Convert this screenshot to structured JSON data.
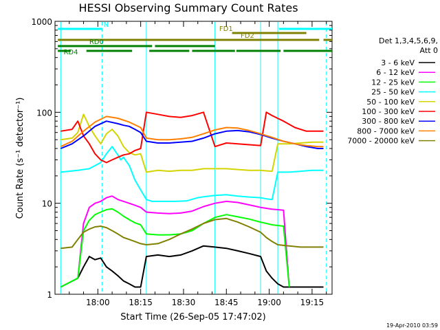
{
  "chart_data": {
    "type": "line",
    "title": "HESSI Observing Summary Count Rates",
    "xlabel": "Start Time (26-Sep-05 17:47:02)",
    "ylabel": "Count Rate (s⁻¹ detector⁻¹)",
    "y_scale": "log",
    "ylim": [
      1,
      1000
    ],
    "xlim_minutes": [
      -2,
      95
    ],
    "x_ticks": [
      {
        "label": "18:00",
        "t": 13
      },
      {
        "label": "18:15",
        "t": 28
      },
      {
        "label": "18:30",
        "t": 43
      },
      {
        "label": "18:45",
        "t": 58
      },
      {
        "label": "19:00",
        "t": 73
      },
      {
        "label": "19:15",
        "t": 88
      }
    ],
    "y_ticks": [
      {
        "label": "1",
        "v": 1
      },
      {
        "label": "10",
        "v": 10
      },
      {
        "label": "100",
        "v": 100
      },
      {
        "label": "1000",
        "v": 1000
      }
    ],
    "legend": {
      "header": [
        "Det 1,3,4,5,6,9,",
        "Att 0"
      ],
      "placement": "right"
    },
    "series": [
      {
        "name": "3 - 6 keV",
        "color": "#000000",
        "x": [
          0,
          6,
          8,
          10,
          12,
          14,
          16,
          18,
          20,
          22,
          24,
          26,
          28,
          30,
          34,
          38,
          42,
          46,
          50,
          54,
          58,
          62,
          66,
          70,
          72,
          74,
          76,
          78,
          80,
          84,
          88,
          92
        ],
        "y": [
          1.2,
          1.5,
          2.0,
          2.6,
          2.4,
          2.5,
          2.0,
          1.8,
          1.6,
          1.4,
          1.3,
          1.2,
          1.2,
          2.6,
          2.7,
          2.6,
          2.7,
          3.0,
          3.4,
          3.3,
          3.2,
          3.0,
          2.8,
          2.6,
          1.8,
          1.5,
          1.3,
          1.2,
          1.2,
          1.2,
          1.2,
          1.2
        ]
      },
      {
        "name": "6 - 12 keV",
        "color": "#ff00ff",
        "x": [
          0,
          6,
          8,
          10,
          12,
          14,
          16,
          18,
          20,
          22,
          24,
          26,
          28,
          30,
          34,
          38,
          42,
          46,
          50,
          54,
          58,
          62,
          66,
          70,
          72,
          74,
          76,
          78,
          80
        ],
        "y": [
          1.2,
          1.5,
          6.0,
          9.0,
          10.0,
          10.5,
          11.5,
          12.0,
          11.0,
          10.5,
          10.0,
          9.5,
          9.0,
          8.0,
          7.8,
          7.7,
          7.8,
          8.2,
          9.2,
          10.0,
          10.5,
          10.2,
          9.6,
          9.0,
          8.8,
          8.6,
          8.5,
          8.4,
          1.2
        ]
      },
      {
        "name": "12 - 25 keV",
        "color": "#00ff00",
        "x": [
          0,
          6,
          8,
          10,
          12,
          14,
          16,
          18,
          20,
          22,
          24,
          26,
          28,
          30,
          34,
          38,
          42,
          46,
          50,
          54,
          58,
          62,
          66,
          70,
          72,
          74,
          76,
          78,
          80
        ],
        "y": [
          1.2,
          1.5,
          5.0,
          6.5,
          7.5,
          8.0,
          8.5,
          8.7,
          8.0,
          7.2,
          6.6,
          6.1,
          5.8,
          4.6,
          4.5,
          4.5,
          4.6,
          5.0,
          6.0,
          7.0,
          7.5,
          7.1,
          6.7,
          6.2,
          6.0,
          5.8,
          5.7,
          5.6,
          1.2
        ]
      },
      {
        "name": "25 - 50 keV",
        "color": "#00ffff",
        "x": [
          0,
          6,
          10,
          14,
          16,
          18,
          20,
          21,
          22,
          24,
          26,
          28,
          30,
          32,
          36,
          40,
          44,
          48,
          50,
          54,
          58,
          62,
          66,
          70,
          72,
          74,
          76,
          80,
          84,
          88,
          92
        ],
        "y": [
          22,
          23,
          24,
          28,
          35,
          42,
          34,
          30,
          32,
          26,
          18,
          14,
          11,
          10.5,
          10.5,
          10.5,
          10.6,
          11.5,
          11.8,
          12.2,
          12.4,
          12.0,
          11.7,
          11.5,
          11.2,
          11.0,
          22,
          22,
          22.5,
          23,
          23
        ]
      },
      {
        "name": "50 - 100 keV",
        "color": "#d4d400",
        "x": [
          0,
          4,
          6,
          8,
          10,
          12,
          14,
          16,
          18,
          20,
          22,
          24,
          26,
          28,
          30,
          34,
          38,
          42,
          46,
          50,
          54,
          58,
          62,
          66,
          70,
          74,
          76,
          80,
          84,
          88,
          92
        ],
        "y": [
          50,
          52,
          60,
          95,
          70,
          55,
          45,
          58,
          65,
          55,
          42,
          36,
          34,
          35,
          22,
          23,
          22.5,
          23,
          23,
          24,
          24,
          24,
          23.5,
          23,
          23,
          22.5,
          45,
          45,
          46,
          47,
          47
        ]
      },
      {
        "name": "100 - 300 keV",
        "color": "#ff0000",
        "x": [
          0,
          4,
          6,
          8,
          10,
          12,
          14,
          16,
          18,
          20,
          22,
          24,
          26,
          28,
          30,
          34,
          38,
          42,
          46,
          50,
          54,
          58,
          62,
          66,
          70,
          72,
          74,
          78,
          82,
          86,
          92
        ],
        "y": [
          62,
          65,
          80,
          55,
          45,
          35,
          30,
          28,
          30,
          32,
          34,
          35,
          38,
          40,
          100,
          95,
          90,
          88,
          92,
          100,
          42,
          46,
          45,
          44,
          43,
          100,
          92,
          80,
          68,
          62,
          62
        ]
      },
      {
        "name": "300 - 800 keV",
        "color": "#0000ff",
        "x": [
          0,
          4,
          8,
          12,
          16,
          20,
          22,
          24,
          26,
          28,
          30,
          34,
          38,
          42,
          46,
          50,
          54,
          58,
          62,
          66,
          70,
          74,
          78,
          82,
          86,
          90,
          92
        ],
        "y": [
          40,
          45,
          55,
          70,
          80,
          75,
          72,
          70,
          65,
          60,
          48,
          46,
          46,
          47,
          48,
          52,
          58,
          62,
          63,
          61,
          57,
          52,
          48,
          45,
          42,
          40,
          40
        ]
      },
      {
        "name": "800 - 7000 keV",
        "color": "#ff8000",
        "x": [
          0,
          4,
          8,
          12,
          16,
          20,
          24,
          28,
          30,
          34,
          38,
          42,
          46,
          50,
          54,
          58,
          62,
          66,
          70,
          74,
          78,
          82,
          86,
          90,
          92
        ],
        "y": [
          42,
          48,
          62,
          78,
          90,
          86,
          78,
          68,
          52,
          50,
          50,
          51,
          53,
          58,
          64,
          68,
          67,
          63,
          58,
          53,
          48,
          45,
          43,
          42,
          42
        ]
      },
      {
        "name": "7000 - 20000 keV",
        "color": "#808000",
        "x": [
          0,
          4,
          6,
          8,
          10,
          12,
          14,
          16,
          18,
          20,
          22,
          24,
          26,
          28,
          30,
          34,
          38,
          42,
          46,
          50,
          54,
          58,
          62,
          66,
          70,
          72,
          74,
          76,
          80,
          84,
          88,
          92
        ],
        "y": [
          3.2,
          3.3,
          4.0,
          4.8,
          5.2,
          5.5,
          5.6,
          5.4,
          5.0,
          4.6,
          4.2,
          4.0,
          3.8,
          3.6,
          3.5,
          3.6,
          4.0,
          4.6,
          5.2,
          6.0,
          6.6,
          6.8,
          6.2,
          5.5,
          4.8,
          4.2,
          3.8,
          3.5,
          3.4,
          3.3,
          3.3,
          3.3
        ]
      }
    ],
    "flag_bars": [
      {
        "label": "N",
        "color": "#00ffff",
        "segments": [
          [
            -1,
            14.5
          ],
          [
            76.5,
            95
          ]
        ]
      },
      {
        "label": "FD1",
        "color": "#808000",
        "segments": [
          [
            60,
            86
          ]
        ]
      },
      {
        "label": "FD2",
        "color": "#808000",
        "segments": [
          [
            -1,
            90.5
          ],
          [
            92,
            95
          ]
        ]
      },
      {
        "label": "RD0",
        "color": "#008000",
        "segments": [
          [
            -1,
            32
          ],
          [
            33,
            54
          ]
        ]
      },
      {
        "label": "RD4",
        "color": "#008000",
        "segments": [
          [
            -1,
            3.5
          ],
          [
            9,
            25
          ],
          [
            31,
            45
          ],
          [
            46,
            61
          ],
          [
            61.5,
            77
          ],
          [
            78,
            95
          ]
        ]
      }
    ],
    "vlines_solid": [
      0,
      30,
      54,
      70,
      76
    ],
    "vlines_dashed": [
      14.5,
      93
    ]
  },
  "footer": {
    "timestamp": "19-Apr-2010 03:59"
  }
}
